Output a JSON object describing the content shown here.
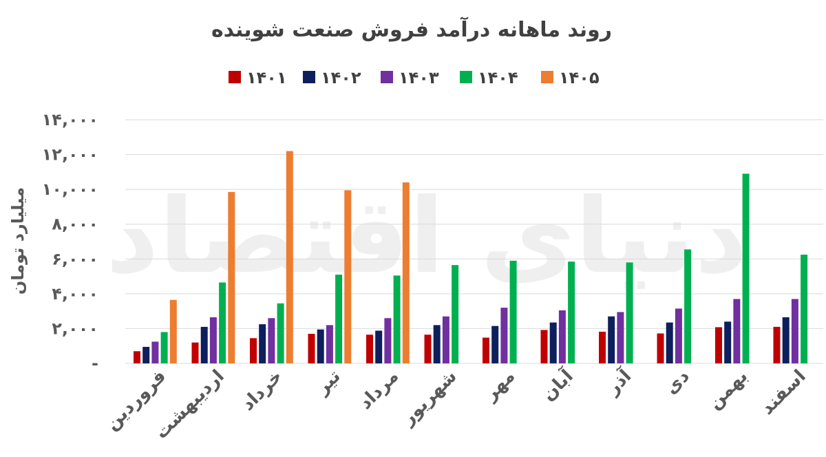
{
  "watermark": "دنیای اقتصاد",
  "chart_data": {
    "type": "bar",
    "title": "روند ماهانه درآمد فروش صنعت شوینده",
    "ylabel": "میلیارد تومان",
    "xlabel": "",
    "ylim": [
      0,
      14000
    ],
    "yticks": [
      0,
      2000,
      4000,
      6000,
      8000,
      10000,
      12000,
      14000
    ],
    "ytick_labels": [
      "-",
      "۲,۰۰۰",
      "۴,۰۰۰",
      "۶,۰۰۰",
      "۸,۰۰۰",
      "۱۰,۰۰۰",
      "۱۲,۰۰۰",
      "۱۴,۰۰۰"
    ],
    "grid": true,
    "legend_position": "top",
    "categories": [
      "فروردین",
      "اردیبهشت",
      "خرداد",
      "تیر",
      "مرداد",
      "شهریور",
      "مهر",
      "آبان",
      "آذر",
      "دی",
      "بهمن",
      "اسفند"
    ],
    "series": [
      {
        "name": "۱۴۰۱",
        "color": "#c00000",
        "values": [
          700,
          1200,
          1450,
          1700,
          1650,
          1650,
          1480,
          1920,
          1820,
          1720,
          2080,
          2100
        ]
      },
      {
        "name": "۱۴۰۲",
        "color": "#0d1f5c",
        "values": [
          950,
          2100,
          2250,
          1950,
          1880,
          2200,
          2150,
          2350,
          2700,
          2350,
          2400,
          2650
        ]
      },
      {
        "name": "۱۴۰۳",
        "color": "#7030a0",
        "values": [
          1250,
          2650,
          2600,
          2200,
          2600,
          2700,
          3200,
          3050,
          2950,
          3150,
          3700,
          3700
        ]
      },
      {
        "name": "۱۴۰۴",
        "color": "#00b050",
        "values": [
          1800,
          4650,
          3450,
          5100,
          5050,
          5650,
          5900,
          5850,
          5800,
          6550,
          10900,
          6250
        ]
      },
      {
        "name": "۱۴۰۵",
        "color": "#ed7d31",
        "values": [
          3650,
          9850,
          12200,
          9950,
          10400,
          null,
          null,
          null,
          null,
          null,
          null,
          null
        ]
      }
    ]
  }
}
